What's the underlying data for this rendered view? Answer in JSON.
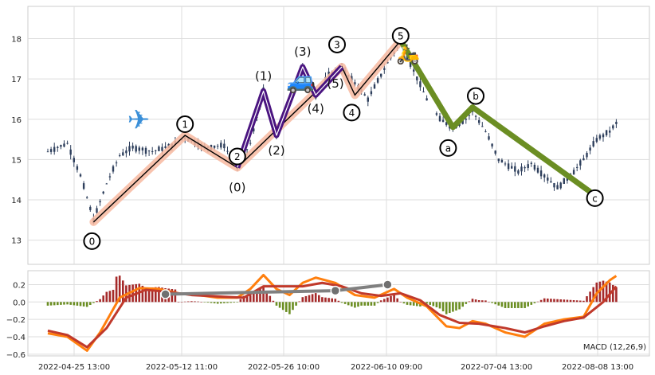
{
  "chart_data": [
    {
      "type": "candlestick",
      "panel": "price",
      "ylim": [
        12.4,
        18.8
      ],
      "yticks": [
        "13",
        "14",
        "15",
        "16",
        "17",
        "18"
      ],
      "grid": true,
      "colors": {
        "candle": "#2e3f5c",
        "wave_fill": "#f7b9a0",
        "wave_line": "#000000",
        "sub_wave": "#4a1480",
        "correction": "#6b8e23"
      },
      "price_walk": [
        {
          "day": 0,
          "p": 15.2
        },
        {
          "day": 3,
          "p": 15.4
        },
        {
          "day": 5,
          "p": 14.6
        },
        {
          "day": 7,
          "p": 13.5
        },
        {
          "day": 9,
          "p": 14.4
        },
        {
          "day": 11,
          "p": 15.1
        },
        {
          "day": 13,
          "p": 15.3
        },
        {
          "day": 16,
          "p": 15.2
        },
        {
          "day": 19,
          "p": 15.35
        },
        {
          "day": 21,
          "p": 15.55
        },
        {
          "day": 24,
          "p": 15.3
        },
        {
          "day": 27,
          "p": 15.35
        },
        {
          "day": 29,
          "p": 14.8
        },
        {
          "day": 31,
          "p": 15.4
        },
        {
          "day": 33,
          "p": 16.7
        },
        {
          "day": 35,
          "p": 15.6
        },
        {
          "day": 37,
          "p": 16.4
        },
        {
          "day": 39,
          "p": 17.3
        },
        {
          "day": 41,
          "p": 16.6
        },
        {
          "day": 43,
          "p": 17.1
        },
        {
          "day": 45,
          "p": 17.25
        },
        {
          "day": 47,
          "p": 16.9
        },
        {
          "day": 49,
          "p": 16.5
        },
        {
          "day": 52,
          "p": 17.4
        },
        {
          "day": 54,
          "p": 17.9
        },
        {
          "day": 56,
          "p": 17.2
        },
        {
          "day": 58,
          "p": 16.5
        },
        {
          "day": 60,
          "p": 16.0
        },
        {
          "day": 62,
          "p": 15.8
        },
        {
          "day": 64,
          "p": 16.0
        },
        {
          "day": 65,
          "p": 16.2
        },
        {
          "day": 67,
          "p": 15.7
        },
        {
          "day": 69,
          "p": 15.0
        },
        {
          "day": 72,
          "p": 14.7
        },
        {
          "day": 74,
          "p": 14.9
        },
        {
          "day": 76,
          "p": 14.6
        },
        {
          "day": 78,
          "p": 14.3
        },
        {
          "day": 80,
          "p": 14.6
        },
        {
          "day": 82,
          "p": 15.0
        },
        {
          "day": 84,
          "p": 15.5
        },
        {
          "day": 86,
          "p": 15.7
        },
        {
          "day": 87,
          "p": 15.9
        }
      ],
      "impulse_waves": [
        {
          "label": "0",
          "day": 7,
          "p": 13.45
        },
        {
          "label": "1",
          "day": 21,
          "p": 15.6
        },
        {
          "label": "2",
          "day": 29,
          "p": 14.8
        },
        {
          "label": "3",
          "day": 45,
          "p": 17.3
        },
        {
          "label": "4",
          "day": 47,
          "p": 16.6
        },
        {
          "label": "5",
          "day": 54,
          "p": 17.95
        }
      ],
      "sub_waves": [
        {
          "label": "(0)",
          "day": 29,
          "p": 14.8
        },
        {
          "label": "(1)",
          "day": 33,
          "p": 16.7
        },
        {
          "label": "(2)",
          "day": 35,
          "p": 15.6
        },
        {
          "label": "(3)",
          "day": 39,
          "p": 17.3
        },
        {
          "label": "(4)",
          "day": 41,
          "p": 16.6
        },
        {
          "label": "(5)",
          "day": 45,
          "p": 17.3
        }
      ],
      "corrective_waves": [
        {
          "label": "a",
          "day": 62,
          "p": 15.8
        },
        {
          "label": "b",
          "day": 65,
          "p": 16.3
        },
        {
          "label": "c",
          "day": 83,
          "p": 14.2
        }
      ],
      "icons": [
        {
          "name": "airplane-icon",
          "glyph": "✈"
        },
        {
          "name": "car-icon",
          "glyph": "🚙"
        },
        {
          "name": "scooter-icon",
          "glyph": "🛵"
        }
      ]
    },
    {
      "type": "macd",
      "panel": "indicator",
      "label": "MACD (12,26,9)",
      "ylim": [
        -0.62,
        0.36
      ],
      "yticks": [
        "0.2",
        "0.0",
        "−0.2",
        "−0.4",
        "−0.6"
      ],
      "ytick_values": [
        0.2,
        0.0,
        -0.2,
        -0.4,
        -0.6
      ],
      "x_tick_labels": [
        "2022-04-25 13:00",
        "2022-05-12 11:00",
        "2022-05-26 10:00",
        "2022-06-10 09:00",
        "2022-07-04 13:00",
        "2022-08-08 13:00"
      ],
      "colors": {
        "macd": "#ff7f0e",
        "signal": "#c0392b",
        "hist_pos": "#a52a2a",
        "hist_neg": "#6b8e23",
        "divergence": "#808080"
      },
      "macd": [
        {
          "day": 0,
          "v": -0.36
        },
        {
          "day": 3,
          "v": -0.4
        },
        {
          "day": 6,
          "v": -0.56
        },
        {
          "day": 8,
          "v": -0.35
        },
        {
          "day": 11,
          "v": 0.05
        },
        {
          "day": 14,
          "v": 0.16
        },
        {
          "day": 17,
          "v": 0.15
        },
        {
          "day": 20,
          "v": 0.1
        },
        {
          "day": 23,
          "v": 0.08
        },
        {
          "day": 26,
          "v": 0.05
        },
        {
          "day": 29,
          "v": 0.05
        },
        {
          "day": 31,
          "v": 0.15
        },
        {
          "day": 33,
          "v": 0.31
        },
        {
          "day": 35,
          "v": 0.15
        },
        {
          "day": 37,
          "v": 0.08
        },
        {
          "day": 39,
          "v": 0.22
        },
        {
          "day": 41,
          "v": 0.28
        },
        {
          "day": 44,
          "v": 0.22
        },
        {
          "day": 47,
          "v": 0.08
        },
        {
          "day": 50,
          "v": 0.05
        },
        {
          "day": 53,
          "v": 0.15
        },
        {
          "day": 55,
          "v": 0.05
        },
        {
          "day": 58,
          "v": -0.05
        },
        {
          "day": 61,
          "v": -0.28
        },
        {
          "day": 63,
          "v": -0.3
        },
        {
          "day": 65,
          "v": -0.22
        },
        {
          "day": 67,
          "v": -0.25
        },
        {
          "day": 70,
          "v": -0.35
        },
        {
          "day": 73,
          "v": -0.4
        },
        {
          "day": 76,
          "v": -0.25
        },
        {
          "day": 79,
          "v": -0.2
        },
        {
          "day": 82,
          "v": -0.17
        },
        {
          "day": 84,
          "v": 0.1
        },
        {
          "day": 86,
          "v": 0.25
        },
        {
          "day": 87,
          "v": 0.3
        }
      ],
      "signal": [
        {
          "day": 0,
          "v": -0.33
        },
        {
          "day": 3,
          "v": -0.38
        },
        {
          "day": 6,
          "v": -0.52
        },
        {
          "day": 9,
          "v": -0.3
        },
        {
          "day": 12,
          "v": 0.05
        },
        {
          "day": 15,
          "v": 0.14
        },
        {
          "day": 18,
          "v": 0.12
        },
        {
          "day": 22,
          "v": 0.08
        },
        {
          "day": 27,
          "v": 0.06
        },
        {
          "day": 30,
          "v": 0.05
        },
        {
          "day": 33,
          "v": 0.18
        },
        {
          "day": 36,
          "v": 0.18
        },
        {
          "day": 39,
          "v": 0.18
        },
        {
          "day": 42,
          "v": 0.22
        },
        {
          "day": 45,
          "v": 0.18
        },
        {
          "day": 48,
          "v": 0.1
        },
        {
          "day": 51,
          "v": 0.07
        },
        {
          "day": 54,
          "v": 0.1
        },
        {
          "day": 57,
          "v": 0.02
        },
        {
          "day": 60,
          "v": -0.15
        },
        {
          "day": 63,
          "v": -0.24
        },
        {
          "day": 66,
          "v": -0.25
        },
        {
          "day": 70,
          "v": -0.3
        },
        {
          "day": 73,
          "v": -0.35
        },
        {
          "day": 76,
          "v": -0.28
        },
        {
          "day": 79,
          "v": -0.22
        },
        {
          "day": 82,
          "v": -0.18
        },
        {
          "day": 85,
          "v": 0.0
        },
        {
          "day": 87,
          "v": 0.18
        }
      ],
      "divergence": [
        {
          "day": 18,
          "v": 0.09
        },
        {
          "day": 44,
          "v": 0.13
        },
        {
          "day": 52,
          "v": 0.2
        }
      ]
    }
  ]
}
